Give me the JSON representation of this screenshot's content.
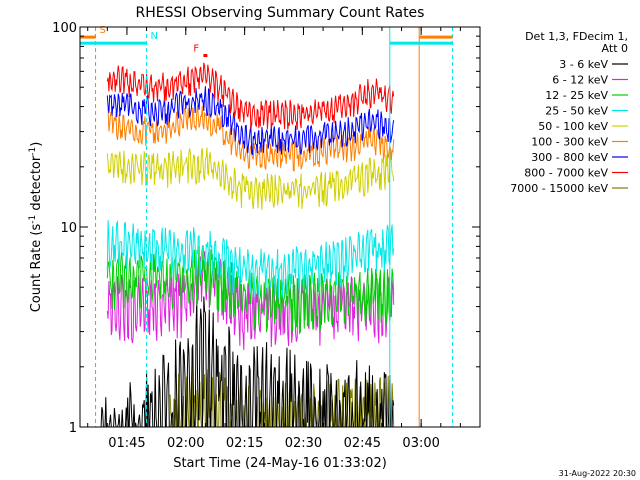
{
  "chart_data": {
    "type": "line",
    "title": "RHESSI Observing Summary Count Rates",
    "xlabel": "Start Time (24-May-16 01:33:02)",
    "ylabel": "Count Rate (s",
    "ylabel_sup": "-1",
    "ylabel_tail": " detector",
    "ylabel_end": ")",
    "y_scale": "log",
    "ylim": [
      1,
      100
    ],
    "xlim": [
      "01:33:02",
      "03:15:00"
    ],
    "y_ticks": [
      {
        "value": 1,
        "label": "1"
      },
      {
        "value": 10,
        "label": "10"
      },
      {
        "value": 100,
        "label": "100"
      }
    ],
    "x_ticks": [
      {
        "value": "01:45",
        "label": "01:45"
      },
      {
        "value": "02:00",
        "label": "02:00"
      },
      {
        "value": "02:15",
        "label": "02:15"
      },
      {
        "value": "02:30",
        "label": "02:30"
      },
      {
        "value": "02:45",
        "label": "02:45"
      },
      {
        "value": "03:00",
        "label": "03:00"
      }
    ],
    "legend_header": [
      "Det 1,3, FDecim 1,",
      "Att 0"
    ],
    "legend_position": "right",
    "series": [
      {
        "name": "3 - 6 keV",
        "color": "#000000",
        "time": [
          "01:38",
          "01:48",
          "01:56",
          "02:00",
          "02:05",
          "02:10",
          "02:15",
          "02:20",
          "02:30",
          "02:40",
          "02:48",
          "02:53"
        ],
        "values": [
          1.0,
          1.3,
          1.8,
          2.8,
          3.6,
          2.5,
          1.6,
          2.1,
          1.6,
          1.5,
          1.6,
          1.5
        ]
      },
      {
        "name": "6 - 12 keV",
        "color": "#e020e0",
        "time": [
          "01:40",
          "01:48",
          "01:56",
          "02:00",
          "02:05",
          "02:10",
          "02:15",
          "02:20",
          "02:30",
          "02:40",
          "02:48",
          "02:53"
        ],
        "values": [
          5.2,
          5.0,
          5.2,
          5.4,
          6.8,
          5.8,
          4.4,
          4.8,
          4.8,
          5.0,
          5.0,
          4.9
        ]
      },
      {
        "name": "12 - 25 keV",
        "color": "#00d000",
        "time": [
          "01:40",
          "01:48",
          "01:56",
          "02:00",
          "02:05",
          "02:10",
          "02:15",
          "02:20",
          "02:30",
          "02:40",
          "02:48",
          "02:53"
        ],
        "values": [
          6.8,
          6.6,
          6.5,
          6.8,
          7.2,
          6.2,
          5.4,
          5.0,
          5.2,
          5.4,
          5.6,
          5.6
        ]
      },
      {
        "name": "25 - 50 keV",
        "color": "#00e8e8",
        "time": [
          "01:40",
          "01:48",
          "01:56",
          "02:00",
          "02:05",
          "02:10",
          "02:15",
          "02:20",
          "02:30",
          "02:40",
          "02:48",
          "02:53"
        ],
        "values": [
          9.8,
          9.2,
          8.8,
          8.8,
          9.0,
          7.8,
          7.2,
          7.0,
          7.2,
          7.8,
          9.0,
          9.4
        ]
      },
      {
        "name": "50 - 100 keV",
        "color": "#d0d000",
        "time": [
          "01:40",
          "01:48",
          "01:56",
          "02:00",
          "02:05",
          "02:10",
          "02:15",
          "02:20",
          "02:30",
          "02:40",
          "02:48",
          "02:53"
        ],
        "values": [
          22,
          22,
          22,
          23,
          23,
          20,
          17,
          17,
          17,
          18,
          21,
          22
        ]
      },
      {
        "name": "100 - 300 keV",
        "color": "#ff7f00",
        "time": [
          "01:40",
          "01:48",
          "01:56",
          "02:00",
          "02:05",
          "02:10",
          "02:15",
          "02:20",
          "02:30",
          "02:40",
          "02:48",
          "02:53"
        ],
        "values": [
          37,
          33,
          34,
          37,
          39,
          32,
          25,
          25,
          25,
          27,
          30,
          26
        ]
      },
      {
        "name": "300 - 800 keV",
        "color": "#0000ff",
        "time": [
          "01:40",
          "01:48",
          "01:56",
          "02:00",
          "02:05",
          "02:10",
          "02:15",
          "02:20",
          "02:30",
          "02:40",
          "02:48",
          "02:53"
        ],
        "values": [
          47,
          42,
          42,
          46,
          48,
          40,
          30,
          30,
          30,
          32,
          37,
          32
        ]
      },
      {
        "name": "800 - 7000 keV",
        "color": "#ff0000",
        "time": [
          "01:40",
          "01:48",
          "01:56",
          "02:00",
          "02:05",
          "02:10",
          "02:15",
          "02:20",
          "02:30",
          "02:40",
          "02:48",
          "02:53"
        ],
        "values": [
          62,
          55,
          55,
          58,
          64,
          51,
          40,
          40,
          40,
          43,
          53,
          46
        ]
      },
      {
        "name": "7000 - 15000 keV",
        "color": "#808000",
        "time": [
          "01:56",
          "02:00",
          "02:05",
          "02:10",
          "02:15",
          "02:20",
          "02:30",
          "02:40",
          "02:48",
          "02:53"
        ],
        "values": [
          1.3,
          1.6,
          1.7,
          1.5,
          1.3,
          1.3,
          1.3,
          1.4,
          1.5,
          1.4
        ]
      }
    ],
    "flag_bars": [
      {
        "label": "S",
        "color": "#ff7f00",
        "y_value": 89,
        "segments": [
          [
            "01:33:02",
            "01:37:00"
          ],
          [
            "02:59:30",
            "03:08:00"
          ]
        ]
      },
      {
        "label": "N",
        "color": "#00e8e8",
        "y_value": 83,
        "segments": [
          [
            "01:33:02",
            "01:50:00"
          ],
          [
            "02:52:00",
            "03:08:00"
          ]
        ]
      },
      {
        "label": "F",
        "color": "#ff0000",
        "y_value": 72,
        "segments": [
          [
            "02:04:30",
            "02:05:30"
          ]
        ]
      }
    ],
    "vertical_markers": [
      {
        "time": "01:37:00",
        "color": "#ff7f00",
        "style": "dashed"
      },
      {
        "time": "01:50:00",
        "color": "#00e8e8",
        "style": "dashed"
      },
      {
        "time": "02:52:00",
        "color": "#00e8e8",
        "style": "solid"
      },
      {
        "time": "02:59:30",
        "color": "#ff7f00",
        "style": "solid"
      },
      {
        "time": "03:08:00",
        "color": "#00e8e8",
        "style": "dashed"
      }
    ],
    "footer_date": "31-Aug-2022 20:30"
  }
}
